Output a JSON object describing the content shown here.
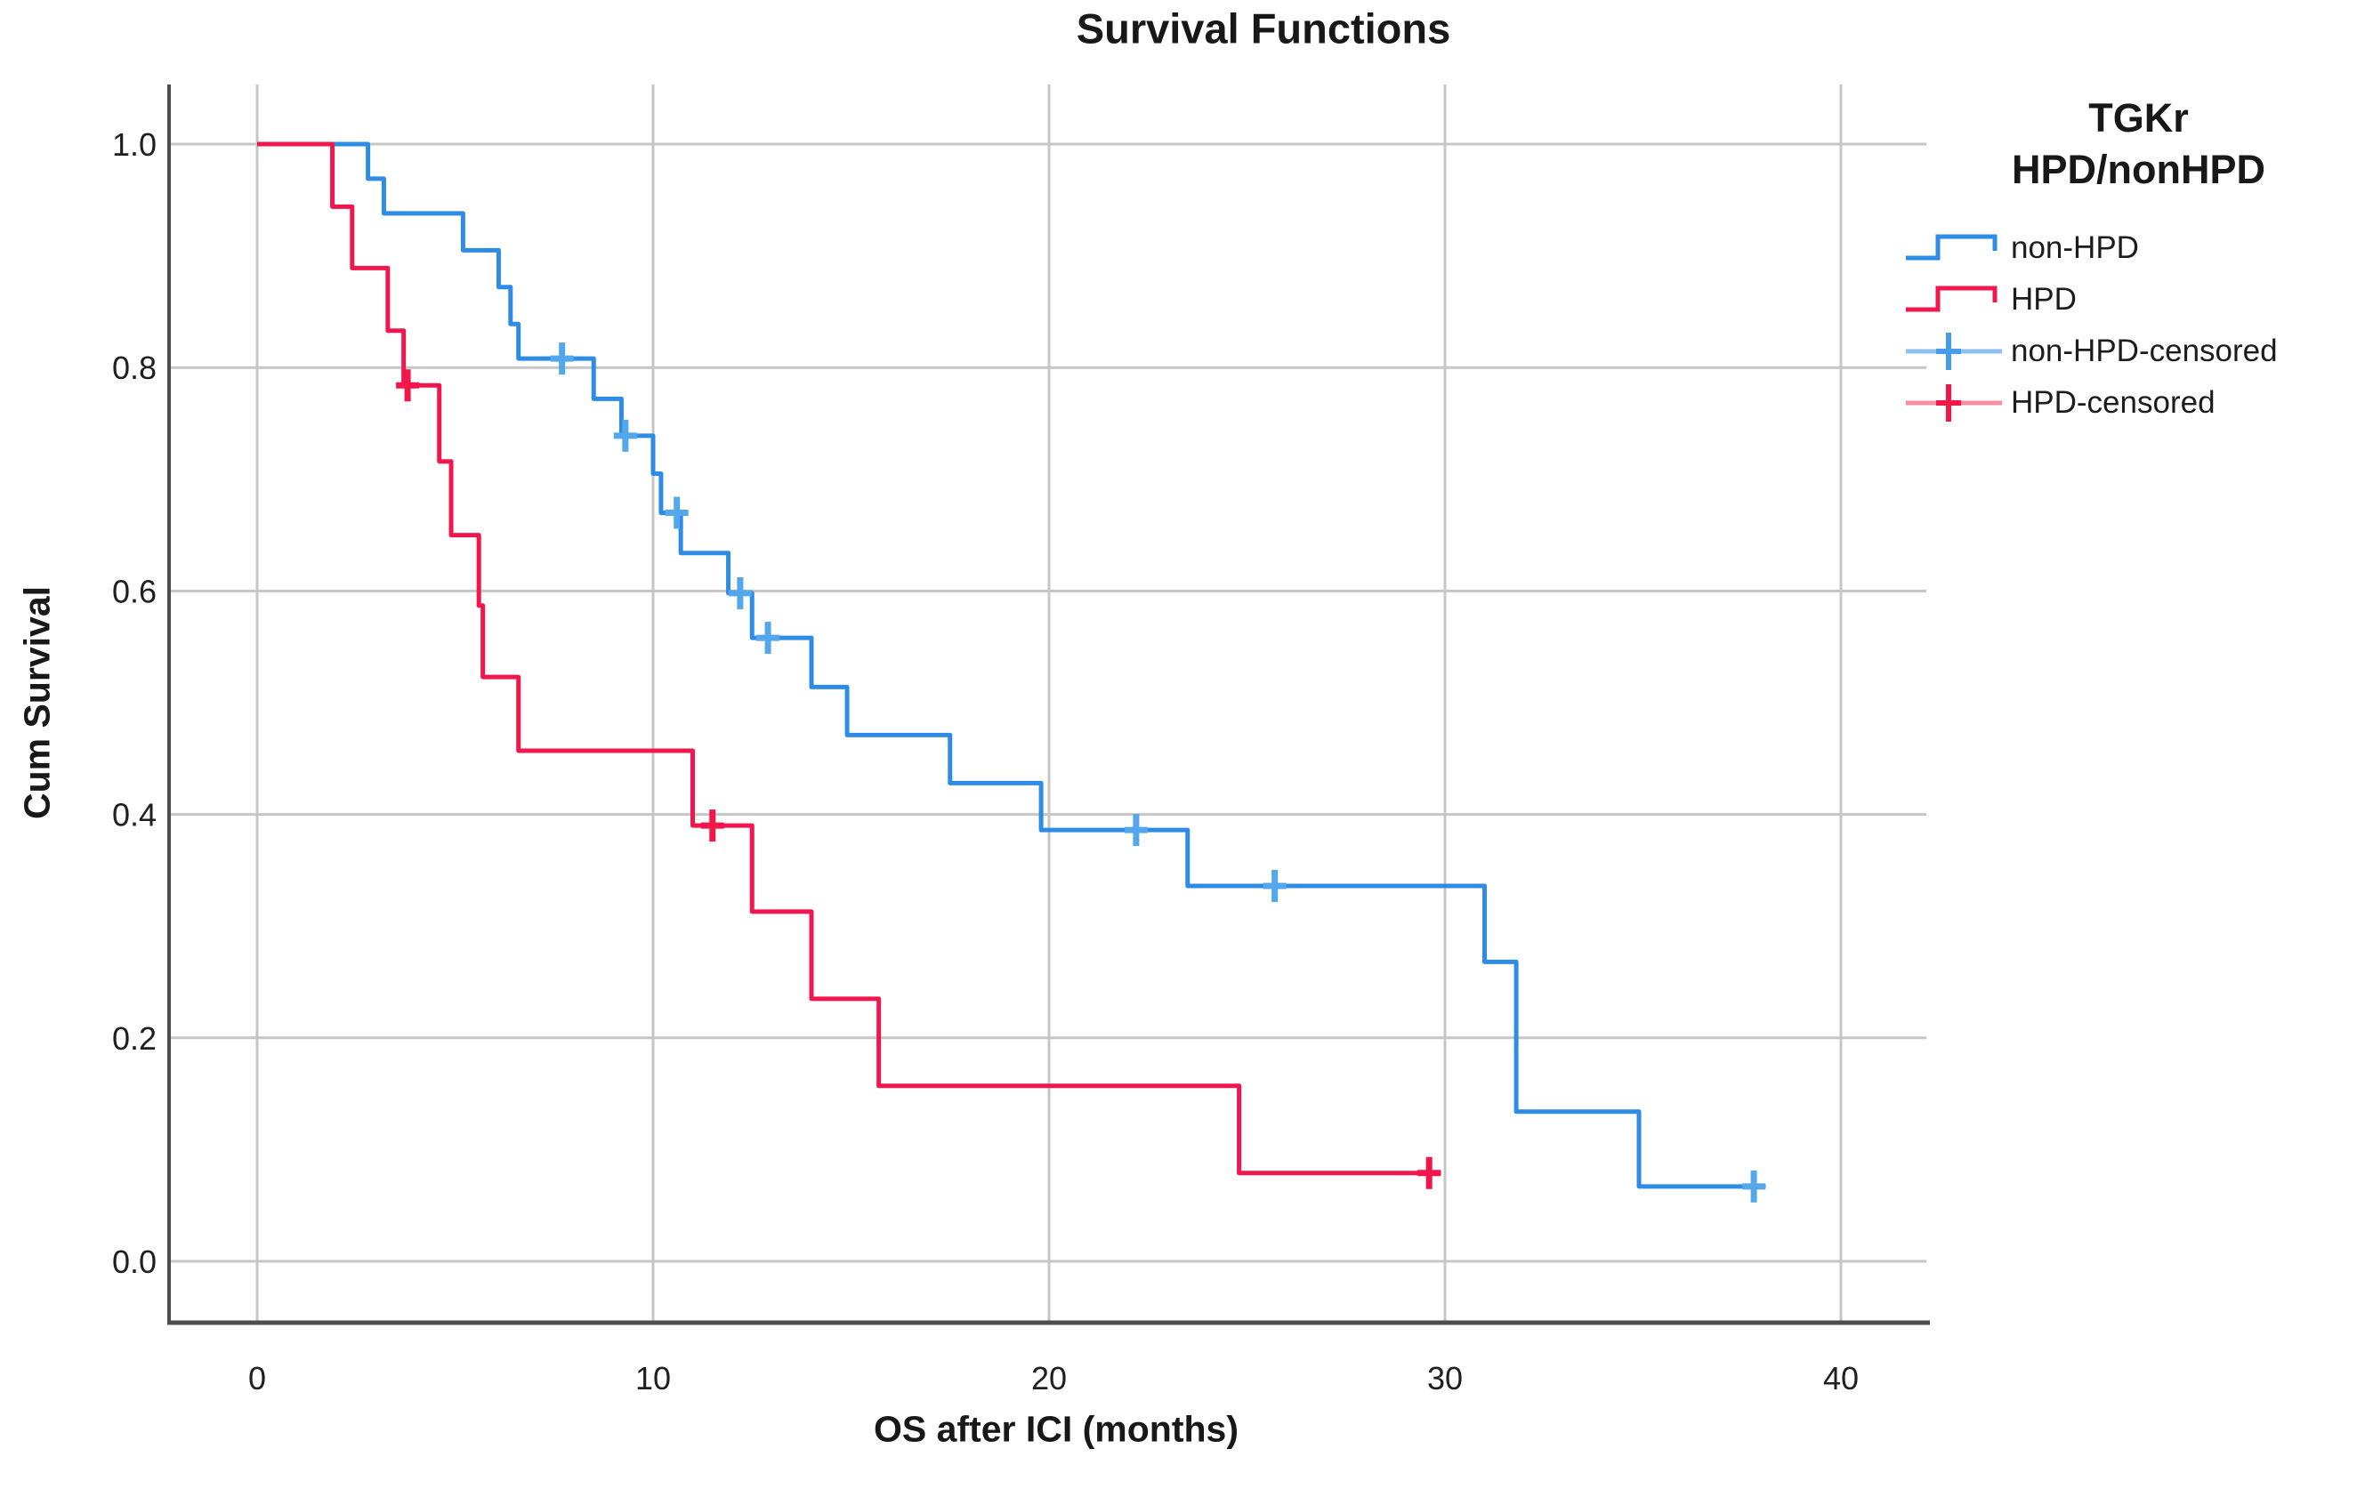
{
  "chart": {
    "title": "Survival Functions",
    "xlabel": "OS after ICI (months)",
    "ylabel": "Cum Survival"
  },
  "legend": {
    "title_line1": "TGKr",
    "title_line2": "HPD/nonHPD",
    "items": [
      {
        "label": "non-HPD",
        "symbol": "step",
        "line_color": "#2E8CE4",
        "mark_color": "#2E8CE4"
      },
      {
        "label": "HPD",
        "symbol": "step",
        "line_color": "#F1174E",
        "mark_color": "#F1174E"
      },
      {
        "label": "non-HPD-censored",
        "symbol": "censor",
        "line_color": "#8CC0F0",
        "mark_color": "#459DE9"
      },
      {
        "label": "HPD-censored",
        "symbol": "censor",
        "line_color": "#F78DA3",
        "mark_color": "#F2164B"
      }
    ]
  },
  "palette": {
    "non_hpd_line": "#2E8CE4",
    "hpd_line": "#F1174E",
    "non_hpd_censor": "#55A7EC",
    "hpd_censor": "#F2164B",
    "gridline": "#C6C6C6",
    "axis_line": "#4D4D4D",
    "text": "#1f1f1f"
  },
  "chart_data": {
    "type": "line",
    "subtype": "kaplan_meier_step",
    "title": "Survival Functions",
    "xlabel": "OS after ICI (months)",
    "ylabel": "Cum Survival",
    "xlim": [
      -2.2,
      42.5
    ],
    "ylim": [
      -0.055,
      1.053
    ],
    "xticks": [
      "0",
      "10",
      "20",
      "30",
      "40"
    ],
    "xtick_values": [
      0,
      10,
      20,
      30,
      40
    ],
    "yticks": [
      "0.0",
      "0.2",
      "0.4",
      "0.6",
      "0.8",
      "1.0"
    ],
    "ytick_values": [
      0,
      0.2,
      0.4,
      0.6,
      0.8,
      1.0
    ],
    "grid": true,
    "legend_position": "right",
    "legend_title": "TGKr HPD/nonHPD",
    "series": [
      {
        "name": "non-HPD",
        "color": "#2E8CE4",
        "start": [
          0,
          1.0
        ],
        "end_x": 38.1,
        "drops": [
          [
            2.8,
            0.969
          ],
          [
            3.2,
            0.938
          ],
          [
            5.2,
            0.905
          ],
          [
            6.1,
            0.872
          ],
          [
            6.4,
            0.839
          ],
          [
            6.6,
            0.808
          ],
          [
            8.5,
            0.772
          ],
          [
            9.2,
            0.739
          ],
          [
            10.0,
            0.705
          ],
          [
            10.2,
            0.67
          ],
          [
            10.7,
            0.634
          ],
          [
            11.9,
            0.598
          ],
          [
            12.5,
            0.558
          ],
          [
            14.0,
            0.514
          ],
          [
            14.9,
            0.471
          ],
          [
            17.5,
            0.428
          ],
          [
            19.8,
            0.386
          ],
          [
            23.5,
            0.336
          ],
          [
            31.0,
            0.268
          ],
          [
            31.8,
            0.134
          ],
          [
            34.9,
            0.067
          ]
        ]
      },
      {
        "name": "HPD",
        "color": "#F1174E",
        "start": [
          0,
          1.0
        ],
        "end_x": 29.9,
        "drops": [
          [
            1.9,
            0.944
          ],
          [
            2.4,
            0.889
          ],
          [
            3.3,
            0.833
          ],
          [
            3.7,
            0.784
          ],
          [
            4.6,
            0.716
          ],
          [
            4.9,
            0.65
          ],
          [
            5.6,
            0.587
          ],
          [
            5.7,
            0.523
          ],
          [
            6.6,
            0.457
          ],
          [
            11.0,
            0.39
          ],
          [
            12.5,
            0.313
          ],
          [
            14.0,
            0.235
          ],
          [
            15.7,
            0.157
          ],
          [
            24.8,
            0.079
          ]
        ]
      }
    ],
    "censored": [
      {
        "name": "non-HPD-censored",
        "color": "#55A7EC",
        "points": [
          [
            7.7,
            0.808
          ],
          [
            9.3,
            0.739
          ],
          [
            10.6,
            0.67
          ],
          [
            12.2,
            0.598
          ],
          [
            12.9,
            0.558
          ],
          [
            22.2,
            0.386
          ],
          [
            25.7,
            0.336
          ],
          [
            37.8,
            0.067
          ]
        ]
      },
      {
        "name": "HPD-censored",
        "color": "#F2164B",
        "points": [
          [
            3.8,
            0.784
          ],
          [
            11.5,
            0.39
          ],
          [
            29.6,
            0.079
          ]
        ]
      }
    ]
  }
}
